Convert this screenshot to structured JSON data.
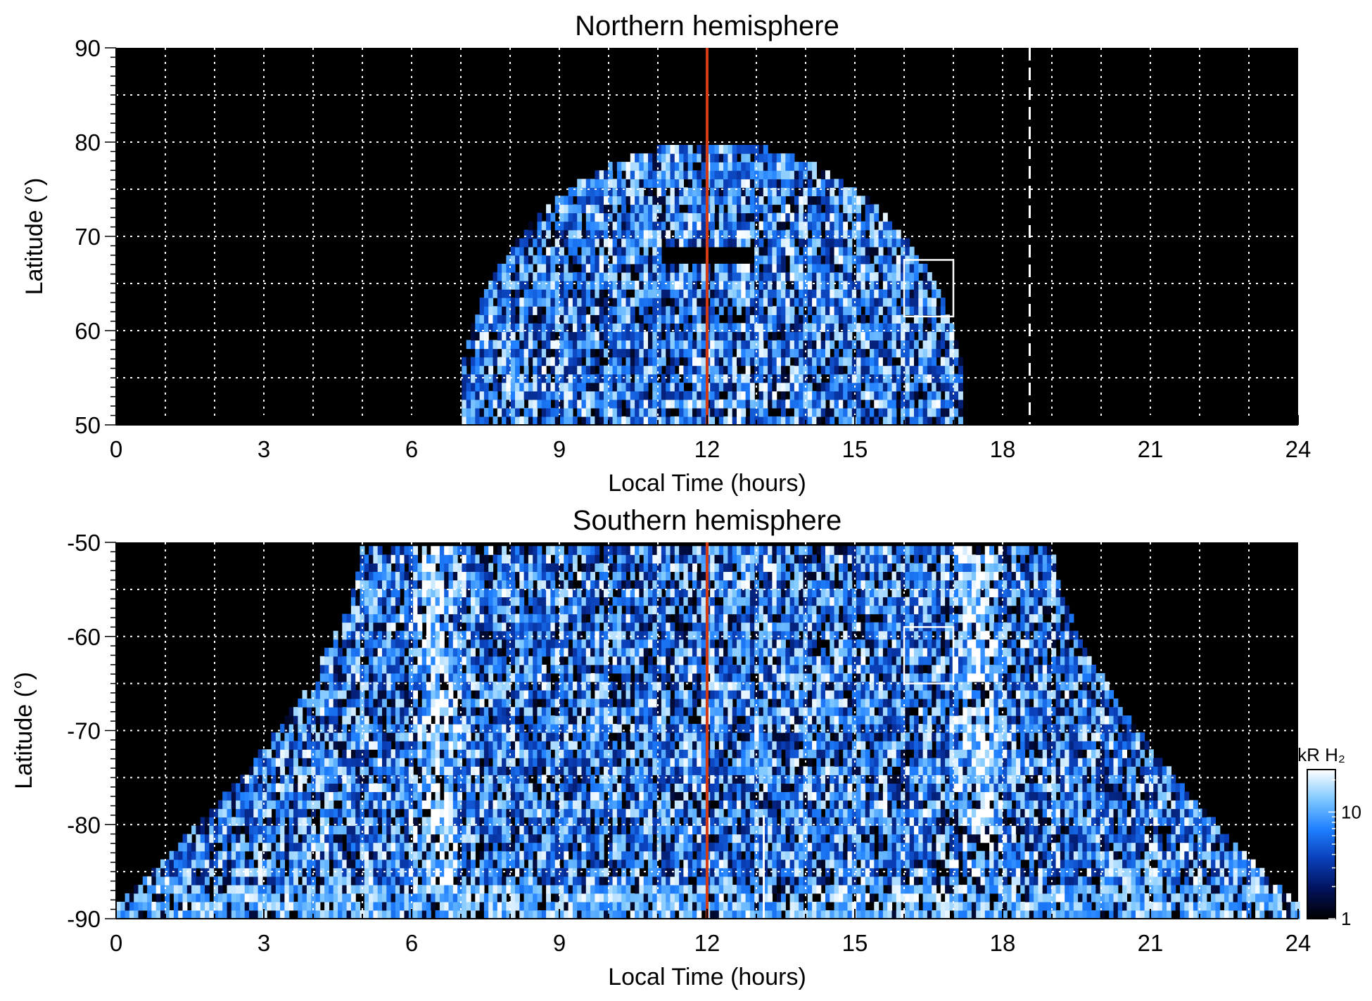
{
  "chart_data": [
    {
      "type": "heatmap",
      "title": "Northern hemisphere",
      "xlabel": "Local Time (hours)",
      "ylabel": "Latitude (°)",
      "xlim": [
        0,
        24
      ],
      "ylim": [
        50,
        90
      ],
      "x_ticks": [
        "0",
        "3",
        "6",
        "9",
        "12",
        "15",
        "18",
        "21",
        "24"
      ],
      "y_ticks": [
        "50",
        "60",
        "70",
        "80",
        "90"
      ],
      "grid": true,
      "colormap": [
        "#000000",
        "#02125c",
        "#0a3fb8",
        "#1e7fff",
        "#7ec8ff",
        "#ffffff"
      ],
      "background": "#000000",
      "emission_region": {
        "lt_min": 7.0,
        "lt_max": 17.2,
        "lat_max": 80,
        "shape": "dome centred near 12 LT"
      },
      "dark_gap": {
        "lt_min": 11.1,
        "lt_max": 13.0,
        "lat_min": 67,
        "lat_max": 68.5
      },
      "markers": [
        {
          "kind": "vertical-line",
          "x": 12.0,
          "color": "#d23b14",
          "style": "solid"
        },
        {
          "kind": "vertical-line",
          "x": 18.55,
          "color": "#ffffff",
          "style": "dashed"
        },
        {
          "kind": "box",
          "x": [
            16.0,
            17.0
          ],
          "y": [
            61.5,
            67.5
          ],
          "color": "#ffffff"
        }
      ]
    },
    {
      "type": "heatmap",
      "title": "Southern hemisphere",
      "xlabel": "Local Time (hours)",
      "ylabel": "Latitude (°)",
      "xlim": [
        0,
        24
      ],
      "ylim": [
        -90,
        -50
      ],
      "x_ticks": [
        "0",
        "3",
        "6",
        "9",
        "12",
        "15",
        "18",
        "21",
        "24"
      ],
      "y_ticks": [
        "-50",
        "-60",
        "-70",
        "-80",
        "-90"
      ],
      "grid": true,
      "colormap": [
        "#000000",
        "#02125c",
        "#0a3fb8",
        "#1e7fff",
        "#7ec8ff",
        "#ffffff"
      ],
      "background": "#000000",
      "emission_region": {
        "lt_min": 0.0,
        "lt_max": 24.0,
        "lat_min": -90,
        "lat_max": -50,
        "shape": "funnel widening toward the pole",
        "bright_ridges_lt": [
          6.5,
          17.5
        ]
      },
      "markers": [
        {
          "kind": "vertical-line",
          "x": 12.0,
          "color": "#d23b14",
          "style": "solid"
        },
        {
          "kind": "vertical-line",
          "x": 13.15,
          "y": [
            -90,
            -79
          ],
          "color": "#ffffff",
          "style": "solid"
        },
        {
          "kind": "box",
          "x": [
            16.0,
            17.0
          ],
          "y": [
            -65,
            -59
          ],
          "color": "#ffffff"
        }
      ]
    }
  ],
  "colorbar": {
    "label": "kR H₂",
    "scale": "log",
    "range": [
      1,
      25
    ],
    "ticks": [
      "1",
      "10"
    ]
  }
}
